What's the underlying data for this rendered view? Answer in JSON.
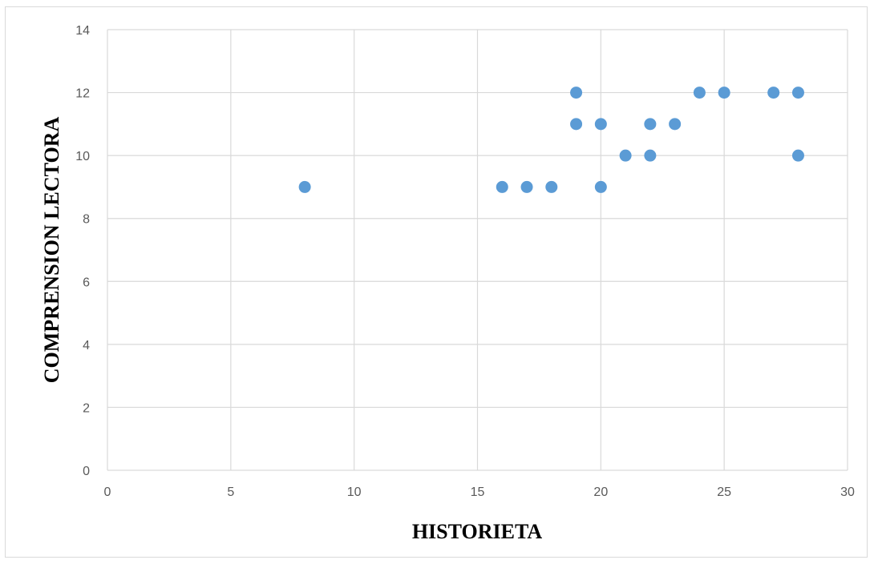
{
  "chart_data": {
    "type": "scatter",
    "title": "",
    "xlabel": "HISTORIETA",
    "ylabel": "COMPRENSION LECTORA",
    "xlim": [
      0,
      30
    ],
    "ylim": [
      0,
      14
    ],
    "xticks": [
      0,
      5,
      10,
      15,
      20,
      25,
      30
    ],
    "yticks": [
      0,
      2,
      4,
      6,
      8,
      10,
      12,
      14
    ],
    "grid": true,
    "legend": "none",
    "marker_color": "#5b9bd5",
    "points": [
      {
        "x": 8,
        "y": 9
      },
      {
        "x": 16,
        "y": 9
      },
      {
        "x": 17,
        "y": 9
      },
      {
        "x": 18,
        "y": 9
      },
      {
        "x": 19,
        "y": 12
      },
      {
        "x": 19,
        "y": 11
      },
      {
        "x": 20,
        "y": 11
      },
      {
        "x": 20,
        "y": 9
      },
      {
        "x": 21,
        "y": 10
      },
      {
        "x": 22,
        "y": 11
      },
      {
        "x": 22,
        "y": 10
      },
      {
        "x": 23,
        "y": 11
      },
      {
        "x": 24,
        "y": 12
      },
      {
        "x": 25,
        "y": 12
      },
      {
        "x": 27,
        "y": 12
      },
      {
        "x": 28,
        "y": 12
      },
      {
        "x": 28,
        "y": 10
      }
    ]
  }
}
